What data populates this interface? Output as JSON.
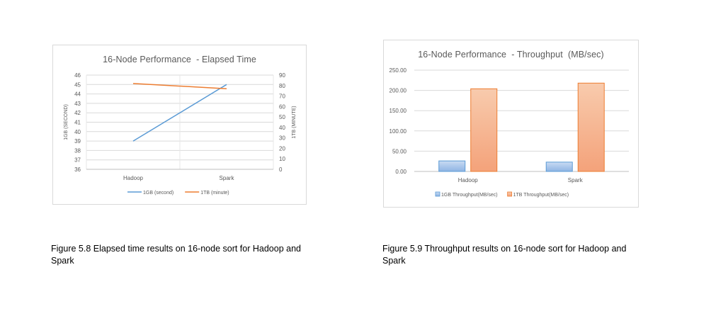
{
  "chart_data": [
    {
      "type": "line",
      "title": "16-Node Performance  - Elapsed Time",
      "categories": [
        "Hadoop",
        "Spark"
      ],
      "ylabel": "1GB (SECOND)",
      "y2label": "1TB (MINUTE)",
      "ylim": [
        36,
        46
      ],
      "y2lim": [
        0,
        90
      ],
      "yticks": [
        "36",
        "37",
        "38",
        "39",
        "40",
        "41",
        "42",
        "43",
        "44",
        "45",
        "46"
      ],
      "y2ticks": [
        "0",
        "10",
        "20",
        "30",
        "40",
        "50",
        "60",
        "70",
        "80",
        "90"
      ],
      "grid": true,
      "legend_position": "bottom",
      "series": [
        {
          "name": "1GB (second)",
          "axis": "left",
          "values": [
            39,
            45
          ],
          "color": "#5b9bd5"
        },
        {
          "name": "1TB (minute)",
          "axis": "right",
          "values": [
            82,
            77
          ],
          "color": "#ed7d31"
        }
      ]
    },
    {
      "type": "bar",
      "title": "16-Node Performance  - Throughput  (MB/sec)",
      "categories": [
        "Hadoop",
        "Spark"
      ],
      "ylim": [
        0,
        250
      ],
      "yticks": [
        "0.00",
        "50.00",
        "100.00",
        "150.00",
        "200.00",
        "250.00"
      ],
      "grid": true,
      "legend_position": "bottom",
      "series": [
        {
          "name": "1GB Throughput(MB/sec)",
          "values": [
            26,
            23
          ],
          "fill_top": "#c9dbf3",
          "fill_bottom": "#8eb4e3",
          "stroke": "#5b9bd5"
        },
        {
          "name": "1TB Throughput(MB/sec)",
          "values": [
            204,
            218
          ],
          "fill_top": "#f8cbad",
          "fill_bottom": "#f4a27a",
          "stroke": "#ed7d31"
        }
      ]
    }
  ],
  "captions": {
    "figure_5_8": "Figure 5.8 Elapsed time results on 16-node sort for Hadoop and Spark",
    "figure_5_9": "Figure 5.9 Throughput results on 16-node sort for Hadoop and Spark"
  }
}
